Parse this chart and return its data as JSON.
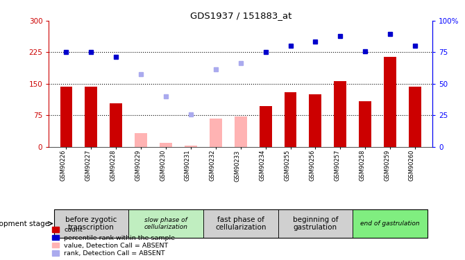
{
  "title": "GDS1937 / 151883_at",
  "samples": [
    "GSM90226",
    "GSM90227",
    "GSM90228",
    "GSM90229",
    "GSM90230",
    "GSM90231",
    "GSM90232",
    "GSM90233",
    "GSM90234",
    "GSM90255",
    "GSM90256",
    "GSM90257",
    "GSM90258",
    "GSM90259",
    "GSM90260"
  ],
  "bar_values": [
    143,
    143,
    103,
    null,
    null,
    null,
    null,
    null,
    97,
    130,
    125,
    157,
    108,
    215,
    143
  ],
  "bar_absent": [
    null,
    null,
    null,
    32,
    10,
    3,
    68,
    73,
    null,
    null,
    null,
    null,
    null,
    null,
    null
  ],
  "scatter_present": [
    225,
    225,
    215,
    null,
    null,
    null,
    null,
    null,
    225,
    240,
    250,
    263,
    228,
    268,
    240
  ],
  "scatter_absent": [
    null,
    null,
    null,
    173,
    120,
    78,
    185,
    200,
    null,
    null,
    null,
    null,
    null,
    null,
    null
  ],
  "bar_color": "#cc0000",
  "bar_absent_color": "#ffb3b3",
  "scatter_present_color": "#0000cc",
  "scatter_absent_color": "#aaaaee",
  "ylim_left": [
    0,
    300
  ],
  "ylim_right": [
    0,
    100
  ],
  "yticks_left": [
    0,
    75,
    150,
    225,
    300
  ],
  "ytick_labels_left": [
    "0",
    "75",
    "150",
    "225",
    "300"
  ],
  "ytick_labels_right": [
    "0",
    "25",
    "50",
    "75",
    "100%"
  ],
  "grid_values": [
    75,
    150,
    225
  ],
  "stage_defs": [
    {
      "label": "before zygotic\ntranscription",
      "start": 0,
      "end": 2,
      "color": "#d0d0d0",
      "fontsize": 7.5,
      "fontstyle": "normal"
    },
    {
      "label": "slow phase of\ncellularization",
      "start": 3,
      "end": 5,
      "color": "#c0eec0",
      "fontsize": 6.5,
      "fontstyle": "italic"
    },
    {
      "label": "fast phase of\ncellularization",
      "start": 6,
      "end": 8,
      "color": "#d0d0d0",
      "fontsize": 7.5,
      "fontstyle": "normal"
    },
    {
      "label": "beginning of\ngastrulation",
      "start": 9,
      "end": 11,
      "color": "#d0d0d0",
      "fontsize": 7.5,
      "fontstyle": "normal"
    },
    {
      "label": "end of gastrulation",
      "start": 12,
      "end": 14,
      "color": "#80ee80",
      "fontsize": 6.5,
      "fontstyle": "italic"
    }
  ],
  "legend_items": [
    {
      "label": "count",
      "color": "#cc0000"
    },
    {
      "label": "percentile rank within the sample",
      "color": "#0000cc"
    },
    {
      "label": "value, Detection Call = ABSENT",
      "color": "#ffb3b3"
    },
    {
      "label": "rank, Detection Call = ABSENT",
      "color": "#aaaaee"
    }
  ],
  "dev_stage_label": "development stage",
  "bar_width": 0.5
}
